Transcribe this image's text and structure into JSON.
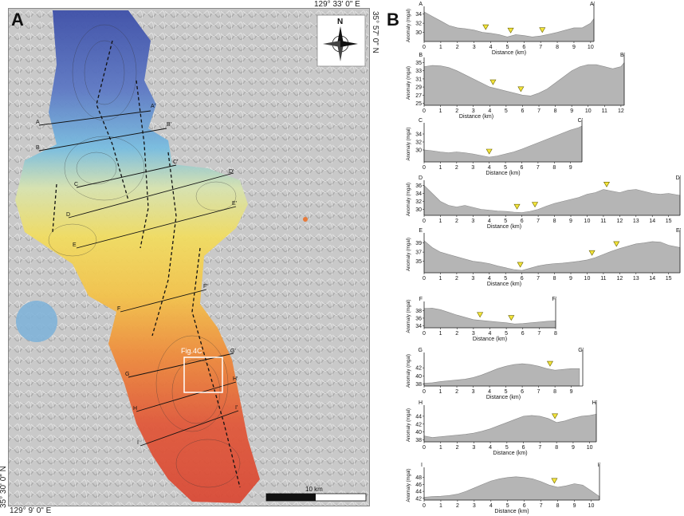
{
  "panel_a": {
    "label": "A",
    "coord_top": "129° 33' 0\" E",
    "coord_right": "35° 57' 0\" N",
    "coord_left": "35° 30' 0\" N",
    "coord_bottom": "129° 9' 0\" E",
    "north_label": "N",
    "scale_label": "10 km",
    "inset_label": "Fig.4C",
    "section_labels": [
      {
        "id": "A",
        "start": "A",
        "end": "A'"
      },
      {
        "id": "B",
        "start": "B",
        "end": "B'"
      },
      {
        "id": "C",
        "start": "C",
        "end": "C'"
      },
      {
        "id": "D",
        "start": "D",
        "end": "D'"
      },
      {
        "id": "E",
        "start": "E",
        "end": "E'"
      },
      {
        "id": "F",
        "start": "F",
        "end": "F'"
      },
      {
        "id": "G",
        "start": "G",
        "end": "G'"
      },
      {
        "id": "H",
        "start": "H",
        "end": "H'"
      },
      {
        "id": "I",
        "start": "I",
        "end": "I'"
      }
    ]
  },
  "panel_b": {
    "label": "B",
    "ylabel": "Anomaly (mgal)",
    "xlabel": "Distance (km)"
  },
  "chart_data": [
    {
      "type": "area",
      "name_start": "A",
      "name_end": "A'",
      "xmax": 10.2,
      "xticks": [
        0,
        1,
        2,
        3,
        4,
        5,
        6,
        7,
        8,
        9,
        10
      ],
      "ylim": [
        28,
        35
      ],
      "yticks": [
        30,
        32,
        34
      ],
      "x": [
        0,
        0.5,
        1,
        1.5,
        2,
        2.5,
        3,
        3.5,
        4,
        4.5,
        5,
        5.5,
        6,
        6.5,
        7,
        7.5,
        8,
        8.5,
        9,
        9.5,
        10,
        10.2
      ],
      "y": [
        34.5,
        33.5,
        32.5,
        31.5,
        31,
        30.8,
        30.5,
        30,
        29.8,
        29.5,
        29,
        29.5,
        29.3,
        29,
        29.2,
        29.6,
        30,
        30.5,
        31,
        31,
        32,
        33
      ],
      "markers": [
        3.7,
        5.2,
        7.1
      ]
    },
    {
      "type": "area",
      "name_start": "B",
      "name_end": "B'",
      "xmax": 12.2,
      "xticks": [
        0,
        1,
        2,
        3,
        4,
        5,
        6,
        7,
        8,
        9,
        10,
        11,
        12
      ],
      "ylim": [
        24.5,
        35.5
      ],
      "yticks": [
        25,
        27,
        29,
        31,
        33,
        35
      ],
      "x": [
        0,
        0.5,
        1,
        1.5,
        2,
        2.5,
        3,
        3.5,
        4,
        4.5,
        5,
        5.5,
        6,
        6.5,
        7,
        7.5,
        8,
        8.5,
        9,
        9.5,
        10,
        10.5,
        11,
        11.5,
        12,
        12.2
      ],
      "y": [
        34,
        34.3,
        34.2,
        33.8,
        33,
        32,
        31,
        30,
        29,
        28.5,
        28,
        27.5,
        27,
        26.8,
        27.5,
        28.5,
        30,
        31.5,
        33,
        34,
        34.5,
        34.5,
        34,
        33.5,
        34,
        35
      ],
      "markers": [
        4.2,
        5.9
      ]
    },
    {
      "type": "area",
      "name_start": "C",
      "name_end": "C'",
      "xmax": 9.7,
      "xticks": [
        0,
        1,
        2,
        3,
        4,
        5,
        6,
        7,
        8,
        9
      ],
      "ylim": [
        27,
        36
      ],
      "yticks": [
        30,
        32,
        34
      ],
      "x": [
        0,
        0.5,
        1,
        1.5,
        2,
        2.5,
        3,
        3.5,
        4,
        4.5,
        5,
        5.5,
        6,
        6.5,
        7,
        7.5,
        8,
        8.5,
        9,
        9.5,
        9.7
      ],
      "y": [
        30,
        29.8,
        29.5,
        29.3,
        29.5,
        29.3,
        29.0,
        28.6,
        28.2,
        28.5,
        29,
        29.5,
        30.2,
        31,
        31.8,
        32.6,
        33.4,
        34.2,
        35,
        35.6,
        36
      ],
      "markers": [
        4.0
      ]
    },
    {
      "type": "area",
      "name_start": "D",
      "name_end": "D'",
      "xmax": 15.7,
      "xticks": [
        0,
        1,
        2,
        3,
        4,
        5,
        6,
        7,
        8,
        9,
        10,
        11,
        12,
        13,
        14,
        15
      ],
      "ylim": [
        28.5,
        36.5
      ],
      "yticks": [
        30,
        32,
        34,
        36
      ],
      "x": [
        0,
        0.5,
        1,
        1.5,
        2,
        2.5,
        3,
        3.5,
        4,
        4.5,
        5,
        5.5,
        6,
        6.5,
        7,
        7.5,
        8,
        8.5,
        9,
        9.5,
        10,
        10.5,
        11,
        11.5,
        12,
        12.5,
        13,
        13.5,
        14,
        14.5,
        15,
        15.7
      ],
      "y": [
        36,
        34,
        32,
        31,
        30.6,
        31,
        30.5,
        30,
        29.8,
        29.6,
        29.5,
        29.3,
        29.2,
        29.5,
        30,
        30.8,
        31.5,
        32,
        32.5,
        33,
        33.8,
        34.2,
        35,
        34.6,
        34.2,
        34.8,
        35,
        34.5,
        34,
        33.8,
        34,
        33.5
      ],
      "markers": [
        5.7,
        6.8,
        11.2
      ]
    },
    {
      "type": "area",
      "name_start": "E",
      "name_end": "E'",
      "xmax": 15.7,
      "xticks": [
        0,
        1,
        2,
        3,
        4,
        5,
        6,
        7,
        8,
        9,
        10,
        11,
        12,
        13,
        14,
        15
      ],
      "ylim": [
        32.5,
        40.5
      ],
      "yticks": [
        35,
        37,
        39
      ],
      "x": [
        0,
        0.5,
        1,
        1.5,
        2,
        2.5,
        3,
        3.5,
        4,
        4.5,
        5,
        5.5,
        6,
        6.5,
        7,
        7.5,
        8,
        8.5,
        9,
        9.5,
        10,
        10.5,
        11,
        11.5,
        12,
        12.5,
        13,
        13.5,
        14,
        14.5,
        15,
        15.7
      ],
      "y": [
        39.5,
        38,
        37,
        36.5,
        36,
        35.5,
        35,
        34.8,
        34.5,
        34,
        33.6,
        33.2,
        33.0,
        33.5,
        34,
        34.3,
        34.5,
        34.6,
        34.8,
        35,
        35.3,
        35.8,
        36.5,
        37.2,
        37.8,
        38.3,
        38.8,
        39,
        39.3,
        39.2,
        38.5,
        38
      ],
      "markers": [
        5.9,
        10.3,
        11.8
      ]
    },
    {
      "type": "area",
      "name_start": "F",
      "name_end": "F'",
      "xmax": 8.0,
      "xticks": [
        0,
        1,
        2,
        3,
        4,
        5,
        6,
        7,
        8
      ],
      "ylim": [
        33.5,
        39.5
      ],
      "yticks": [
        34,
        36,
        38
      ],
      "x": [
        0,
        0.5,
        1,
        1.5,
        2,
        2.5,
        3,
        3.5,
        4,
        4.5,
        5,
        5.5,
        6,
        6.5,
        7,
        7.5,
        8
      ],
      "y": [
        38.5,
        38.6,
        38.2,
        37.5,
        36.8,
        36.2,
        35.6,
        35.4,
        35.2,
        35,
        34.8,
        34.5,
        34.6,
        34.8,
        35,
        35.2,
        35.3
      ],
      "markers": [
        3.4,
        5.3
      ]
    },
    {
      "type": "area",
      "name_start": "G",
      "name_end": "G'",
      "xmax": 9.7,
      "xticks": [
        0,
        1,
        2,
        3,
        4,
        5,
        6,
        7,
        8,
        9
      ],
      "ylim": [
        37.5,
        45
      ],
      "yticks": [
        38,
        40,
        42
      ],
      "x": [
        0,
        0.5,
        1,
        1.5,
        2,
        2.5,
        3,
        3.5,
        4,
        4.5,
        5,
        5.5,
        6,
        6.5,
        7,
        7.5,
        8,
        8.5,
        9,
        9.5
      ],
      "y": [
        38.2,
        38.3,
        38.6,
        38.8,
        39,
        39.2,
        39.6,
        40.2,
        41,
        41.8,
        42.4,
        42.8,
        43,
        42.8,
        42.4,
        41.8,
        41.4,
        41.6,
        41.8,
        41.8
      ],
      "markers": [
        7.7
      ]
    },
    {
      "type": "area",
      "name_start": "H",
      "name_end": "H'",
      "xmax": 10.4,
      "xticks": [
        0,
        1,
        2,
        3,
        4,
        5,
        6,
        7,
        8,
        9,
        10
      ],
      "ylim": [
        37.5,
        46
      ],
      "yticks": [
        38,
        40,
        42,
        44
      ],
      "x": [
        0,
        0.5,
        1,
        1.5,
        2,
        2.5,
        3,
        3.5,
        4,
        4.5,
        5,
        5.5,
        6,
        6.5,
        7,
        7.5,
        8,
        8.5,
        9,
        9.5,
        10,
        10.4
      ],
      "y": [
        39,
        38.6,
        38.8,
        39,
        39.2,
        39.4,
        39.7,
        40.2,
        40.8,
        41.6,
        42.4,
        43.2,
        44,
        44.2,
        44,
        43.4,
        42.4,
        42.8,
        43.5,
        44,
        44.2,
        44.5
      ],
      "markers": [
        7.9
      ]
    },
    {
      "type": "area",
      "name_start": "I",
      "name_end": "I'",
      "xmax": 10.5,
      "xticks": [
        0,
        1,
        2,
        3,
        4,
        5,
        6,
        7,
        8,
        9,
        10
      ],
      "ylim": [
        41.5,
        50
      ],
      "yticks": [
        42,
        44,
        46,
        48
      ],
      "x": [
        0,
        0.5,
        1,
        1.5,
        2,
        2.5,
        3,
        3.5,
        4,
        4.5,
        5,
        5.5,
        6,
        6.5,
        7,
        7.5,
        8,
        8.5,
        9,
        9.5,
        10,
        10.5
      ],
      "y": [
        42.3,
        42.5,
        42.6,
        42.8,
        43.2,
        44,
        45,
        46,
        47,
        47.6,
        48,
        48.2,
        48,
        47.6,
        46.8,
        45.8,
        45.2,
        45.6,
        46.2,
        45.8,
        44.2,
        42.5
      ],
      "markers": [
        7.8
      ]
    }
  ]
}
